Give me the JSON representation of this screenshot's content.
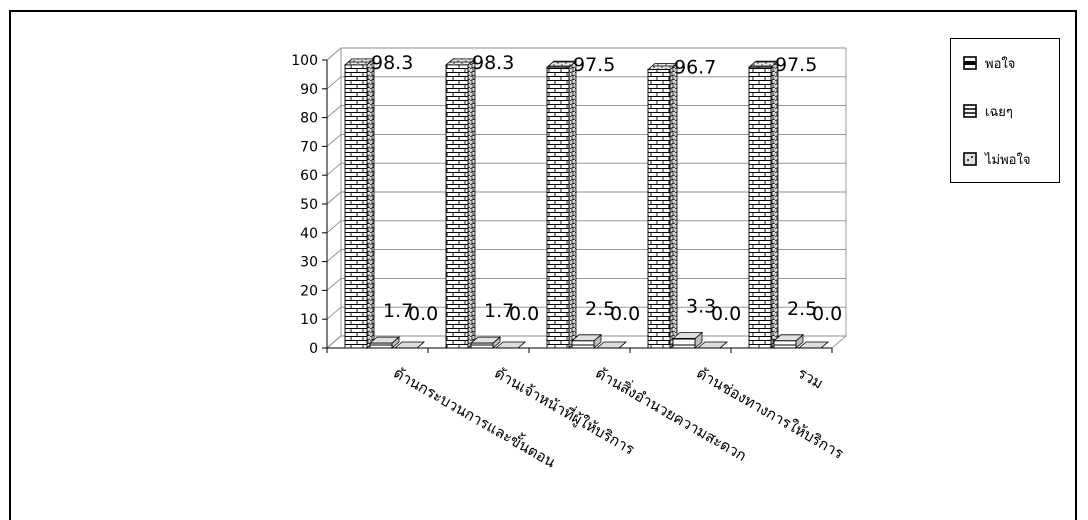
{
  "chart_data": {
    "type": "bar",
    "categories": [
      "ด้านกระบวนการและขั้นตอน",
      "ด้านเจ้าหน้าที่ผู้ให้บริการ",
      "ด้านสิ่งอำนวยความสะดวก",
      "ด้านช่องทางการให้บริการ",
      "รวม"
    ],
    "series": [
      {
        "name": "พอใจ",
        "values": [
          98.3,
          98.3,
          97.5,
          96.7,
          97.5
        ],
        "labels": [
          "98.3",
          "98.3",
          "97.5",
          "96.7",
          "97.5"
        ]
      },
      {
        "name": "เฉยๆ",
        "values": [
          1.7,
          1.7,
          2.5,
          3.3,
          2.5
        ],
        "labels": [
          "1.7",
          "1.7",
          "2.5",
          "3.3",
          "2.5"
        ]
      },
      {
        "name": "ไม่พอใจ",
        "values": [
          0.0,
          0.0,
          0.0,
          0.0,
          0.0
        ],
        "labels": [
          "0.0",
          "0.0",
          "0.0",
          "0.0",
          "0.0"
        ]
      }
    ],
    "yticks": [
      "0",
      "10",
      "20",
      "30",
      "40",
      "50",
      "60",
      "70",
      "80",
      "90",
      "100"
    ],
    "ylim": [
      0,
      100
    ],
    "grid": true,
    "legend_position": "right",
    "style": "3d-clustered-column"
  },
  "legend": {
    "items": [
      "พอใจ",
      "เฉยๆ",
      "ไม่พอใจ"
    ]
  }
}
